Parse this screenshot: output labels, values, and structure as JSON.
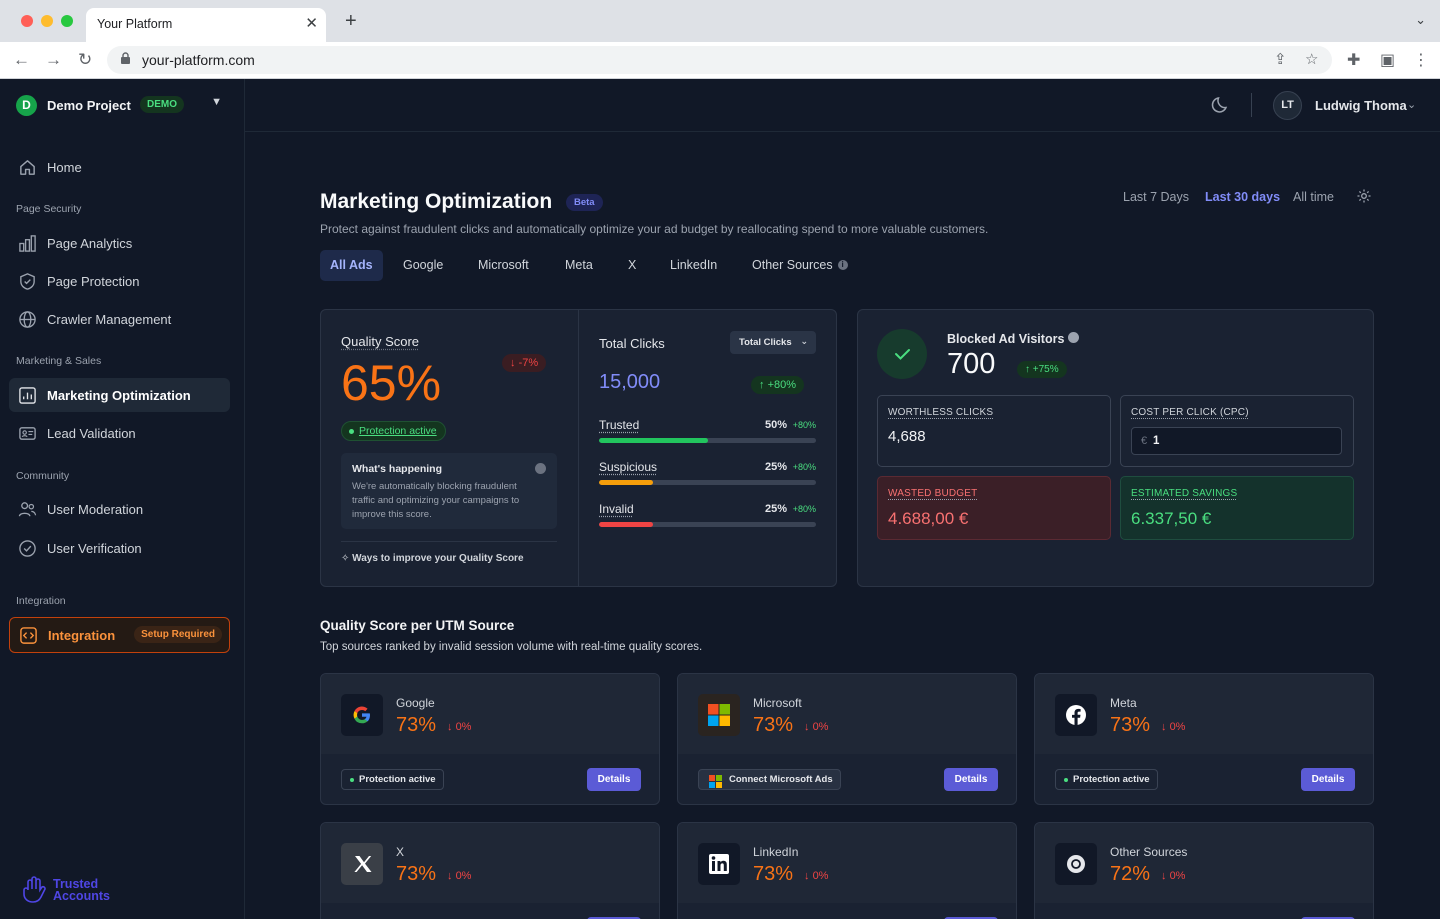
{
  "browser": {
    "tab_title": "Your Platform",
    "tab_close": "✕",
    "new_tab": "+",
    "url": "your-platform.com"
  },
  "sidebar": {
    "project": {
      "initial": "D",
      "name": "Demo Project",
      "badge": "DEMO"
    },
    "home": "Home",
    "sections": {
      "page_security": "Page Security",
      "marketing_sales": "Marketing & Sales",
      "community": "Community",
      "integration": "Integration"
    },
    "items": {
      "page_analytics": "Page Analytics",
      "page_protection": "Page Protection",
      "crawler_management": "Crawler Management",
      "marketing_optimization": "Marketing Optimization",
      "lead_validation": "Lead Validation",
      "user_moderation": "User Moderation",
      "user_verification": "User Verification",
      "integration": "Integration",
      "integration_badge": "Setup Required"
    },
    "brand": {
      "line1": "Trusted",
      "line2": "Accounts"
    }
  },
  "topbar": {
    "user_initials": "LT",
    "user_name": "Ludwig Thoma"
  },
  "header": {
    "title": "Marketing Optimization",
    "badge": "Beta",
    "subtitle": "Protect against fraudulent clicks and automatically optimize your ad budget by reallocating spend to more valuable customers.",
    "ranges": [
      "Last 7 Days",
      "Last 30 days",
      "All time"
    ],
    "active_range": "Last 30 days"
  },
  "filters": {
    "all_ads": "All Ads",
    "google": "Google",
    "microsoft": "Microsoft",
    "meta": "Meta",
    "x": "X",
    "linkedin": "LinkedIn",
    "other": "Other Sources",
    "active": "All Ads"
  },
  "quality": {
    "title": "Quality Score",
    "value": "65%",
    "delta": "-7%",
    "status": "Protection active",
    "happening_title": "What's happening",
    "happening_text": "We're automatically blocking fraudulent traffic and optimizing your campaigns to improve this score.",
    "improve_link": "Ways to improve your Quality Score"
  },
  "clicks": {
    "title": "Total Clicks",
    "select_value": "Total Clicks",
    "value": "15,000",
    "delta": "+80%",
    "rows": [
      {
        "label": "Trusted",
        "pct": "50%",
        "fill": 0.5,
        "change": "+80%",
        "color": "#22c55e"
      },
      {
        "label": "Suspicious",
        "pct": "25%",
        "fill": 0.25,
        "change": "+80%",
        "color": "#f59e0b"
      },
      {
        "label": "Invalid",
        "pct": "25%",
        "fill": 0.25,
        "change": "+80%",
        "color": "#ef4444"
      }
    ]
  },
  "blocked": {
    "title": "Blocked Ad Visitors",
    "value": "700",
    "delta": "+75%",
    "worthless_label": "WORTHLESS CLICKS",
    "worthless_value": "4,688",
    "cpc_label": "COST PER CLICK (CPC)",
    "cpc_currency": "€",
    "cpc_value": "1",
    "wasted_label": "WASTED BUDGET",
    "wasted_value": "4.688,00 €",
    "savings_label": "ESTIMATED SAVINGS",
    "savings_value": "6.337,50 €"
  },
  "utm": {
    "title": "Quality Score per UTM Source",
    "subtitle": "Top sources ranked by invalid session volume with real-time quality scores.",
    "details_label": "Details",
    "sources": {
      "google": {
        "name": "Google",
        "value": "73%",
        "delta": "0%",
        "status": "Protection active"
      },
      "microsoft": {
        "name": "Microsoft",
        "value": "73%",
        "delta": "0%",
        "status": "Connect Microsoft Ads"
      },
      "meta": {
        "name": "Meta",
        "value": "73%",
        "delta": "0%",
        "status": "Protection active"
      },
      "x": {
        "name": "X",
        "value": "73%",
        "delta": "0%"
      },
      "linkedin": {
        "name": "LinkedIn",
        "value": "73%",
        "delta": "0%"
      },
      "other": {
        "name": "Other Sources",
        "value": "72%",
        "delta": "0%"
      }
    }
  },
  "colors": {
    "accent": "#818cf8",
    "orange": "#f97316",
    "green": "#4ade80",
    "red": "#ef4444",
    "bg": "#111827"
  }
}
